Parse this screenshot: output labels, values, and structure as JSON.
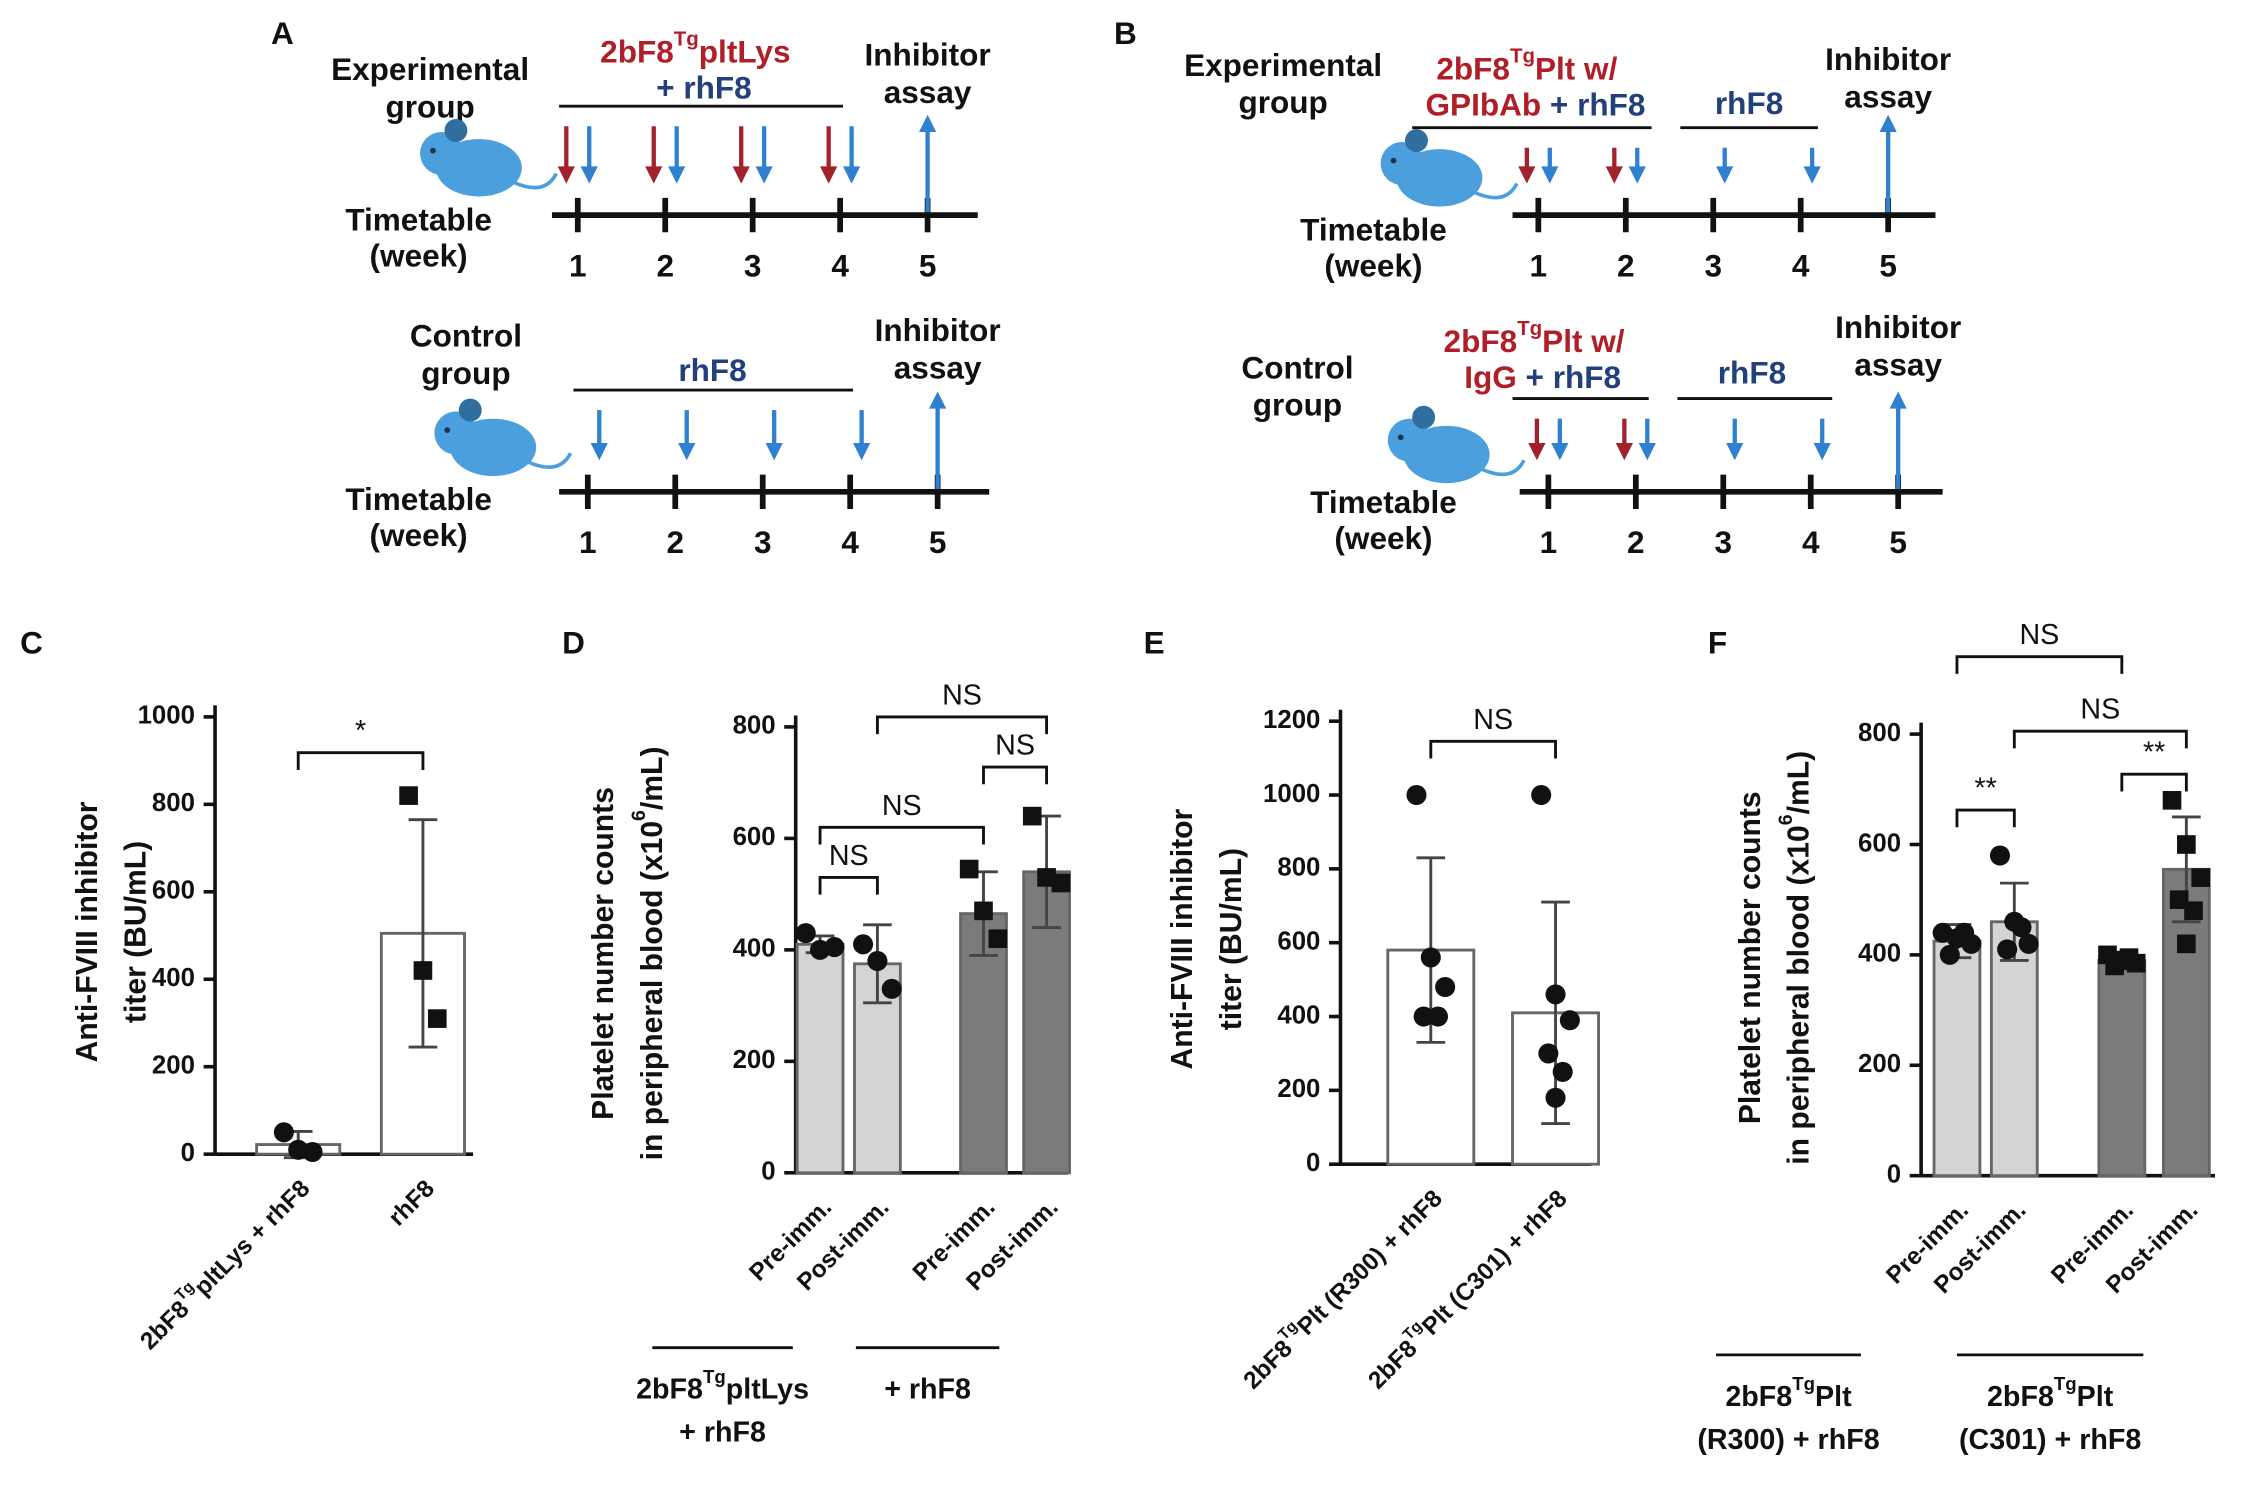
{
  "diagrams": [
    {
      "label": "A",
      "rows": [
        {
          "group": [
            "Experimental",
            "group"
          ],
          "timeline": [
            "Timetable",
            "(week)"
          ],
          "weeks": [
            "1",
            "2",
            "3",
            "4",
            "5"
          ],
          "assay": [
            "Inhibitor",
            "assay"
          ],
          "treatments": [
            {
              "lines": [
                [
                  {
                    "text": "2bF8",
                    "color": "#b01e28"
                  },
                  {
                    "text": "Tg",
                    "color": "#b01e28",
                    "sup": true
                  },
                  {
                    "text": "pltLys",
                    "color": "#b01e28"
                  }
                ],
                [
                  {
                    "text": "+ rhF8",
                    "color": "#22407c"
                  }
                ]
              ]
            }
          ]
        },
        {
          "group": [
            "Control",
            "group"
          ],
          "timeline": [
            "Timetable",
            "(week)"
          ],
          "weeks": [
            "1",
            "2",
            "3",
            "4",
            "5"
          ],
          "assay": [
            "Inhibitor",
            "assay"
          ],
          "treatments": [
            {
              "lines": [
                [
                  {
                    "text": "rhF8",
                    "color": "#22407c"
                  }
                ]
              ]
            }
          ]
        }
      ]
    },
    {
      "label": "B",
      "rows": [
        {
          "group": [
            "Experimental",
            "group"
          ],
          "timeline": [
            "Timetable",
            "(week)"
          ],
          "weeks": [
            "1",
            "2",
            "3",
            "4",
            "5"
          ],
          "assay": [
            "Inhibitor",
            "assay"
          ],
          "treatments": [
            {
              "lines": [
                [
                  {
                    "text": "2bF8",
                    "color": "#b01e28"
                  },
                  {
                    "text": "Tg",
                    "color": "#b01e28",
                    "sup": true
                  },
                  {
                    "text": "Plt w/",
                    "color": "#b01e28"
                  }
                ],
                [
                  {
                    "text": "GPIbAb",
                    "color": "#b01e28"
                  },
                  {
                    "text": " + rhF8",
                    "color": "#22407c"
                  }
                ]
              ]
            },
            {
              "lines": [
                [
                  {
                    "text": "rhF8",
                    "color": "#22407c"
                  }
                ]
              ]
            }
          ]
        },
        {
          "group": [
            "Control",
            "group"
          ],
          "timeline": [
            "Timetable",
            "(week)"
          ],
          "weeks": [
            "1",
            "2",
            "3",
            "4",
            "5"
          ],
          "assay": [
            "Inhibitor",
            "assay"
          ],
          "treatments": [
            {
              "lines": [
                [
                  {
                    "text": "2bF8",
                    "color": "#b01e28"
                  },
                  {
                    "text": "Tg",
                    "color": "#b01e28",
                    "sup": true
                  },
                  {
                    "text": "Plt w/",
                    "color": "#b01e28"
                  }
                ],
                [
                  {
                    "text": "IgG",
                    "color": "#b01e28"
                  },
                  {
                    "text": " + rhF8",
                    "color": "#22407c"
                  }
                ]
              ]
            },
            {
              "lines": [
                [
                  {
                    "text": "rhF8",
                    "color": "#22407c"
                  }
                ]
              ]
            }
          ]
        }
      ]
    }
  ],
  "chart_data": [
    {
      "type": "bar",
      "label": "C",
      "ylabel": [
        [
          {
            "text": "Anti-FVIII inhibitor"
          }
        ],
        [
          {
            "text": "titer (BU/mL)"
          }
        ]
      ],
      "categories": [
        [
          {
            "text": "2bF8"
          },
          {
            "text": "Tg",
            "sup": true
          },
          {
            "text": "pltLys + rhF8"
          }
        ],
        [
          {
            "text": "rhF8"
          }
        ]
      ],
      "values": [
        22,
        505
      ],
      "errors": [
        30,
        260
      ],
      "points": [
        [
          50,
          10,
          5
        ],
        [
          820,
          420,
          310
        ]
      ],
      "markers": [
        "circle",
        "square"
      ],
      "bar_colors": [
        "#ffffff",
        "#ffffff"
      ],
      "ylim": [
        0,
        1000
      ],
      "yticks": [
        0,
        200,
        400,
        600,
        800,
        1000
      ],
      "annotations": [
        {
          "text": "*"
        }
      ]
    },
    {
      "type": "bar",
      "label": "D",
      "ylabel": [
        [
          {
            "text": "Platelet number counts"
          }
        ],
        [
          {
            "text": "in peripheral blood (x10"
          },
          {
            "text": "6",
            "sup": true
          },
          {
            "text": "/mL)"
          }
        ]
      ],
      "categories": [
        [
          {
            "text": "Pre-imm."
          }
        ],
        [
          {
            "text": "Post-imm."
          }
        ],
        [
          {
            "text": "Pre-imm."
          }
        ],
        [
          {
            "text": "Post-imm."
          }
        ]
      ],
      "values": [
        410,
        375,
        465,
        540
      ],
      "errors": [
        15,
        70,
        75,
        100
      ],
      "points": [
        [
          430,
          400,
          405
        ],
        [
          410,
          380,
          330
        ],
        [
          545,
          470,
          420
        ],
        [
          640,
          530,
          520
        ]
      ],
      "markers": [
        "circle",
        "circle",
        "square",
        "square"
      ],
      "bar_colors": [
        "#d4d4d4",
        "#d4d4d4",
        "#7b7b7b",
        "#7b7b7b"
      ],
      "ylim": [
        0,
        800
      ],
      "yticks": [
        0,
        200,
        400,
        600,
        800
      ],
      "annotations": [
        {
          "text": "NS"
        },
        {
          "text": "NS"
        },
        {
          "text": "NS"
        },
        {
          "text": "NS"
        }
      ],
      "groups": [
        {
          "lines": [
            [
              {
                "text": "2bF8"
              },
              {
                "text": "Tg",
                "sup": true
              },
              {
                "text": "pltLys"
              }
            ],
            [
              {
                "text": "+ rhF8"
              }
            ]
          ]
        },
        {
          "lines": [
            [
              {
                "text": "+ rhF8"
              }
            ]
          ]
        }
      ]
    },
    {
      "type": "bar",
      "label": "E",
      "ylabel": [
        [
          {
            "text": "Anti-FVIII inhibitor"
          }
        ],
        [
          {
            "text": "titer (BU/mL)"
          }
        ]
      ],
      "categories": [
        [
          {
            "text": "2bF8"
          },
          {
            "text": "Tg",
            "sup": true
          },
          {
            "text": "Plt (R300) + rhF8"
          }
        ],
        [
          {
            "text": "2bF8"
          },
          {
            "text": "Tg",
            "sup": true
          },
          {
            "text": "Plt (C301) + rhF8"
          }
        ]
      ],
      "values": [
        580,
        410
      ],
      "errors": [
        250,
        300
      ],
      "points": [
        [
          1000,
          560,
          480,
          400,
          400
        ],
        [
          1000,
          460,
          390,
          300,
          250,
          180
        ]
      ],
      "markers": [
        "circle",
        "circle"
      ],
      "bar_colors": [
        "#ffffff",
        "#ffffff"
      ],
      "ylim": [
        0,
        1200
      ],
      "yticks": [
        0,
        200,
        400,
        600,
        800,
        1000,
        1200
      ],
      "annotations": [
        {
          "text": "NS"
        }
      ]
    },
    {
      "type": "bar",
      "label": "F",
      "ylabel": [
        [
          {
            "text": "Platelet number counts"
          }
        ],
        [
          {
            "text": "in peripheral blood (x10"
          },
          {
            "text": "6",
            "sup": true
          },
          {
            "text": "/mL)"
          }
        ]
      ],
      "categories": [
        [
          {
            "text": "Pre-imm."
          }
        ],
        [
          {
            "text": "Post-imm."
          }
        ],
        [
          {
            "text": "Pre-imm."
          }
        ],
        [
          {
            "text": "Post-imm."
          }
        ]
      ],
      "values": [
        425,
        460,
        390,
        555
      ],
      "errors": [
        30,
        70,
        15,
        95
      ],
      "points": [
        [
          440,
          430,
          420,
          400,
          440
        ],
        [
          580,
          460,
          420,
          410,
          450
        ],
        [
          400,
          390,
          385,
          380,
          395
        ],
        [
          680,
          600,
          540,
          500,
          480,
          420
        ]
      ],
      "markers": [
        "circle",
        "circle",
        "square",
        "square"
      ],
      "bar_colors": [
        "#d4d4d4",
        "#d4d4d4",
        "#7b7b7b",
        "#7b7b7b"
      ],
      "ylim": [
        0,
        800
      ],
      "yticks": [
        0,
        200,
        400,
        600,
        800
      ],
      "annotations": [
        {
          "text": "NS"
        },
        {
          "text": "NS"
        },
        {
          "text": "**"
        },
        {
          "text": "**"
        }
      ],
      "groups": [
        {
          "lines": [
            [
              {
                "text": "2bF8"
              },
              {
                "text": "Tg",
                "sup": true
              },
              {
                "text": "Plt"
              }
            ],
            [
              {
                "text": "(R300) + rhF8"
              }
            ]
          ]
        },
        {
          "lines": [
            [
              {
                "text": "2bF8"
              },
              {
                "text": "Tg",
                "sup": true
              },
              {
                "text": "Plt"
              }
            ],
            [
              {
                "text": "(C301) + rhF8"
              }
            ]
          ]
        }
      ]
    }
  ]
}
